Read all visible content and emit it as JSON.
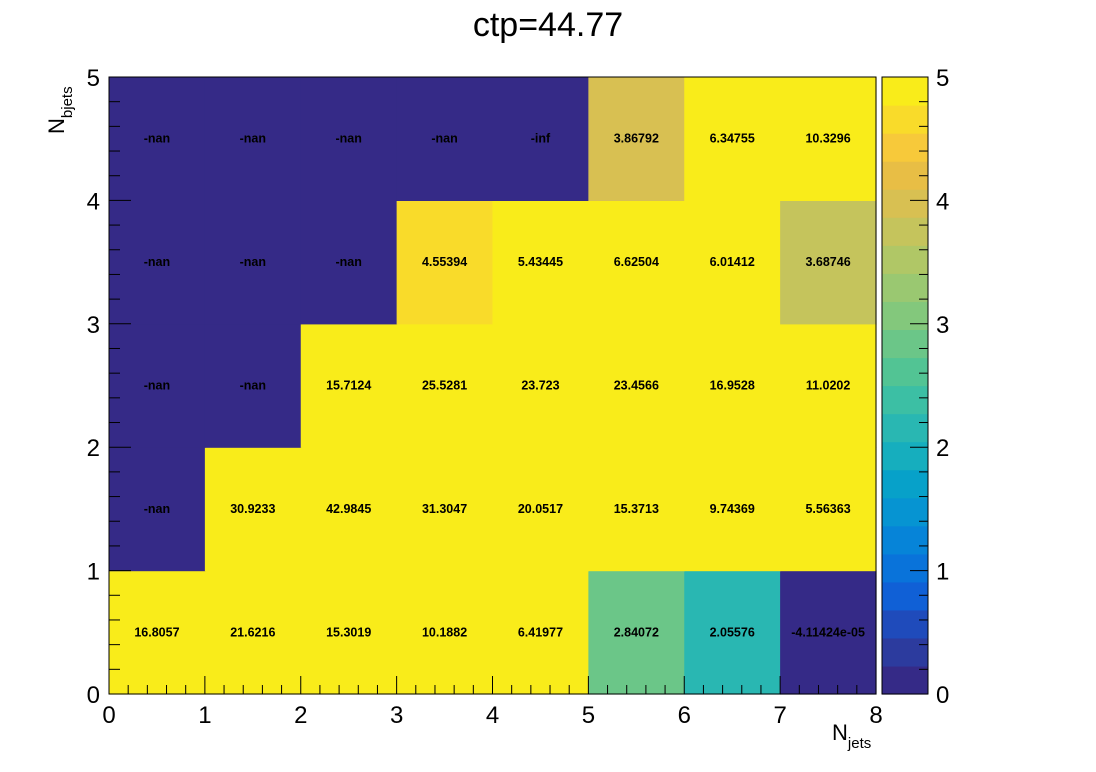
{
  "chart_data": {
    "type": "heatmap",
    "title": "ctp=44.77",
    "xlabel": {
      "main": "N",
      "sub": "jets"
    },
    "ylabel": {
      "main": "N",
      "sub": "bjets"
    },
    "xlim": [
      0,
      8
    ],
    "ylim": [
      0,
      5
    ],
    "zlim": [
      0,
      5
    ],
    "x_ticks": [
      "0",
      "1",
      "2",
      "3",
      "4",
      "5",
      "6",
      "7",
      "8"
    ],
    "y_ticks": [
      "0",
      "1",
      "2",
      "3",
      "4",
      "5"
    ],
    "z_ticks": [
      "0",
      "1",
      "2",
      "3",
      "4",
      "5"
    ],
    "palette": [
      "#352a87",
      "#2c3b9e",
      "#1f4bbb",
      "#1060d6",
      "#0973da",
      "#0684d8",
      "#0694d2",
      "#07a1c9",
      "#16aebe",
      "#29b7b2",
      "#3cbfa4",
      "#52c494",
      "#6bc688",
      "#83c87c",
      "#9ac871",
      "#b0c766",
      "#c5c45c",
      "#d8c052",
      "#e8be45",
      "#f7c93a",
      "#f9db2a",
      "#f9ec1a"
    ],
    "cells": [
      {
        "x": 0,
        "y": 0,
        "label": "16.8057",
        "z": 16.8057
      },
      {
        "x": 1,
        "y": 0,
        "label": "21.6216",
        "z": 21.6216
      },
      {
        "x": 2,
        "y": 0,
        "label": "15.3019",
        "z": 15.3019
      },
      {
        "x": 3,
        "y": 0,
        "label": "10.1882",
        "z": 10.1882
      },
      {
        "x": 4,
        "y": 0,
        "label": "6.41977",
        "z": 6.41977
      },
      {
        "x": 5,
        "y": 0,
        "label": "2.84072",
        "z": 2.84072
      },
      {
        "x": 6,
        "y": 0,
        "label": "2.05576",
        "z": 2.05576
      },
      {
        "x": 7,
        "y": 0,
        "label": "-4.11424e-05",
        "z": -4.11424e-05
      },
      {
        "x": 0,
        "y": 1,
        "label": "-nan",
        "z": null
      },
      {
        "x": 1,
        "y": 1,
        "label": "30.9233",
        "z": 30.9233
      },
      {
        "x": 2,
        "y": 1,
        "label": "42.9845",
        "z": 42.9845
      },
      {
        "x": 3,
        "y": 1,
        "label": "31.3047",
        "z": 31.3047
      },
      {
        "x": 4,
        "y": 1,
        "label": "20.0517",
        "z": 20.0517
      },
      {
        "x": 5,
        "y": 1,
        "label": "15.3713",
        "z": 15.3713
      },
      {
        "x": 6,
        "y": 1,
        "label": "9.74369",
        "z": 9.74369
      },
      {
        "x": 7,
        "y": 1,
        "label": "5.56363",
        "z": 5.56363
      },
      {
        "x": 0,
        "y": 2,
        "label": "-nan",
        "z": null
      },
      {
        "x": 1,
        "y": 2,
        "label": "-nan",
        "z": null
      },
      {
        "x": 2,
        "y": 2,
        "label": "15.7124",
        "z": 15.7124
      },
      {
        "x": 3,
        "y": 2,
        "label": "25.5281",
        "z": 25.5281
      },
      {
        "x": 4,
        "y": 2,
        "label": "23.723",
        "z": 23.723
      },
      {
        "x": 5,
        "y": 2,
        "label": "23.4566",
        "z": 23.4566
      },
      {
        "x": 6,
        "y": 2,
        "label": "16.9528",
        "z": 16.9528
      },
      {
        "x": 7,
        "y": 2,
        "label": "11.0202",
        "z": 11.0202
      },
      {
        "x": 0,
        "y": 3,
        "label": "-nan",
        "z": null
      },
      {
        "x": 1,
        "y": 3,
        "label": "-nan",
        "z": null
      },
      {
        "x": 2,
        "y": 3,
        "label": "-nan",
        "z": null
      },
      {
        "x": 3,
        "y": 3,
        "label": "4.55394",
        "z": 4.55394
      },
      {
        "x": 4,
        "y": 3,
        "label": "5.43445",
        "z": 5.43445
      },
      {
        "x": 5,
        "y": 3,
        "label": "6.62504",
        "z": 6.62504
      },
      {
        "x": 6,
        "y": 3,
        "label": "6.01412",
        "z": 6.01412
      },
      {
        "x": 7,
        "y": 3,
        "label": "3.68746",
        "z": 3.68746
      },
      {
        "x": 0,
        "y": 4,
        "label": "-nan",
        "z": null
      },
      {
        "x": 1,
        "y": 4,
        "label": "-nan",
        "z": null
      },
      {
        "x": 2,
        "y": 4,
        "label": "-nan",
        "z": null
      },
      {
        "x": 3,
        "y": 4,
        "label": "-nan",
        "z": null
      },
      {
        "x": 4,
        "y": 4,
        "label": "-inf",
        "z": null
      },
      {
        "x": 5,
        "y": 4,
        "label": "3.86792",
        "z": 3.86792
      },
      {
        "x": 6,
        "y": 4,
        "label": "6.34755",
        "z": 6.34755
      },
      {
        "x": 7,
        "y": 4,
        "label": "10.3296",
        "z": 10.3296
      }
    ]
  }
}
